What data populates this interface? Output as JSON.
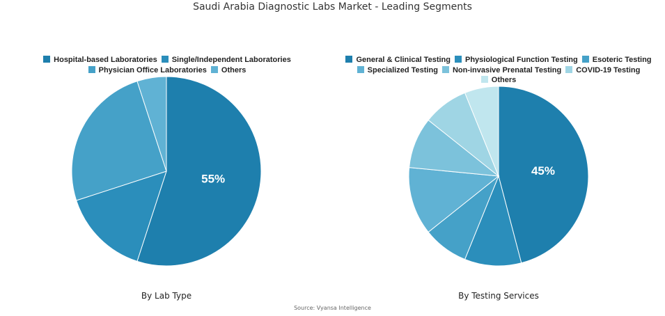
{
  "title": "Saudi Arabia Diagnostic Labs Market - Leading Segments",
  "source": "Source: Vyansa Intelligence",
  "chart_data": [
    {
      "type": "pie",
      "subtitle": "By Lab Type",
      "categories": [
        "Hospital-based Laboratories",
        "Single/Independent Laboratories",
        "Physician Office Laboratories",
        "Others"
      ],
      "values": [
        55,
        15,
        25,
        5
      ],
      "data_labels": [
        "55%",
        "",
        "",
        ""
      ],
      "colors": [
        "#1e7fad",
        "#2b8ebb",
        "#45a1c8",
        "#60b2d4"
      ],
      "legend_rows": [
        [
          0,
          1
        ],
        [
          2,
          3
        ]
      ],
      "legend_placement": "top"
    },
    {
      "type": "pie",
      "subtitle": "By Testing Services",
      "categories": [
        "General & Clinical Testing",
        "Physiological Function Testing",
        "Esoteric Testing",
        "Specialized Testing",
        "Non-invasive Prenatal Testing",
        "COVID-19 Testing",
        "Others"
      ],
      "values": [
        45,
        10,
        8,
        12,
        9,
        8,
        6
      ],
      "data_labels": [
        "45%",
        "",
        "",
        "",
        "",
        "",
        ""
      ],
      "colors": [
        "#1e7fad",
        "#2b8ebb",
        "#45a1c8",
        "#60b2d4",
        "#7cc2db",
        "#9fd5e4",
        "#c0e6ee"
      ],
      "legend_rows": [
        [
          0,
          1,
          2
        ],
        [
          3,
          4,
          5
        ],
        [
          6
        ]
      ],
      "legend_placement": "top"
    }
  ]
}
